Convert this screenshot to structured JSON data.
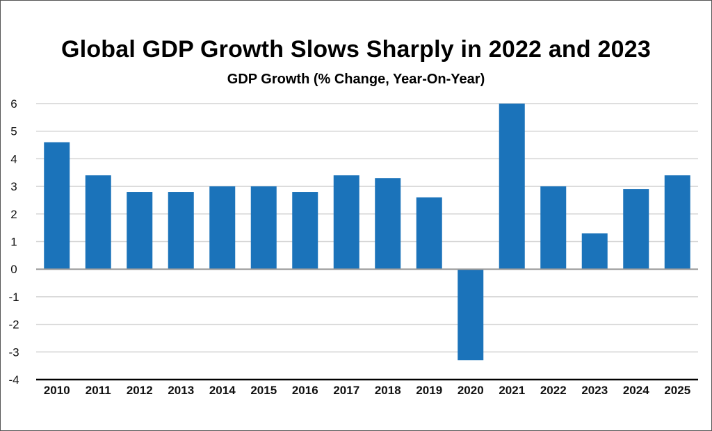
{
  "chart_data": {
    "type": "bar",
    "title": "Global GDP Growth Slows Sharply in 2022 and 2023",
    "subtitle": "GDP Growth (% Change, Year-On-Year)",
    "xlabel": "",
    "ylabel": "",
    "categories": [
      "2010",
      "2011",
      "2012",
      "2013",
      "2014",
      "2015",
      "2016",
      "2017",
      "2018",
      "2019",
      "2020",
      "2021",
      "2022",
      "2023",
      "2024",
      "2025"
    ],
    "values": [
      4.6,
      3.4,
      2.8,
      2.8,
      3.0,
      3.0,
      2.8,
      3.4,
      3.3,
      2.6,
      -3.3,
      6.0,
      3.0,
      1.3,
      2.9,
      3.4
    ],
    "ylim": [
      -4,
      6
    ],
    "yticks": [
      6,
      5,
      4,
      3,
      2,
      1,
      0,
      -1,
      -2,
      -3,
      -4
    ],
    "grid": true,
    "legend": "none",
    "colors": {
      "bar": "#1b73ba",
      "grid": "#d4d4d4",
      "zero_line": "#9a9a9a",
      "axis": "#000000"
    }
  }
}
